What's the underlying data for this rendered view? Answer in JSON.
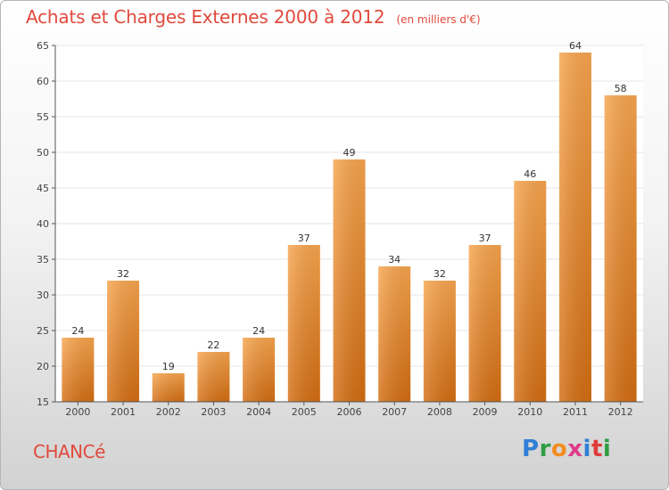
{
  "header": {
    "title": "Achats et Charges Externes 2000 à 2012",
    "subtitle": "(en milliers d'€)"
  },
  "footer": {
    "commune": "CHANCé",
    "logo_letters": [
      "P",
      "r",
      "o",
      "x",
      "i",
      "t",
      "i"
    ]
  },
  "colors": {
    "title": "#e04a3c",
    "bar_top": "#f7a54e",
    "bar_bottom": "#d36d12",
    "axis": "#555555",
    "grid": "#e5e5e5"
  },
  "chart_data": {
    "type": "bar",
    "title": "Achats et Charges Externes 2000 à 2012",
    "subtitle": "(en milliers d'€)",
    "xlabel": "",
    "ylabel": "",
    "categories": [
      "2000",
      "2001",
      "2002",
      "2003",
      "2004",
      "2005",
      "2006",
      "2007",
      "2008",
      "2009",
      "2010",
      "2011",
      "2012"
    ],
    "values": [
      24,
      32,
      19,
      22,
      24,
      37,
      49,
      34,
      32,
      37,
      46,
      64,
      58
    ],
    "ylim": [
      15,
      65
    ],
    "yticks": [
      15,
      20,
      25,
      30,
      35,
      40,
      45,
      50,
      55,
      60,
      65
    ],
    "grid": true,
    "legend": "none"
  }
}
